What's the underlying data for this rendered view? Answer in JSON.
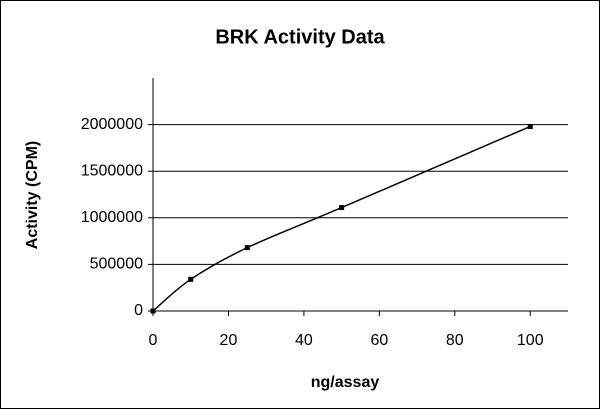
{
  "chart_data": {
    "type": "line",
    "title": "BRK Activity Data",
    "x_label": "ng/assay",
    "y_label": "Activity (CPM)",
    "x": [
      0,
      10,
      25,
      50,
      100
    ],
    "values": [
      0,
      340000,
      680000,
      1110000,
      1980000
    ],
    "color": "#000000",
    "xlim": [
      0,
      110
    ],
    "xticks": [
      0,
      20,
      40,
      60,
      80,
      100
    ],
    "ylim": [
      0,
      2500000
    ],
    "yticks": [
      0,
      500000,
      1000000,
      1500000,
      2000000
    ],
    "grid": true,
    "smooth": true,
    "markers": true
  }
}
